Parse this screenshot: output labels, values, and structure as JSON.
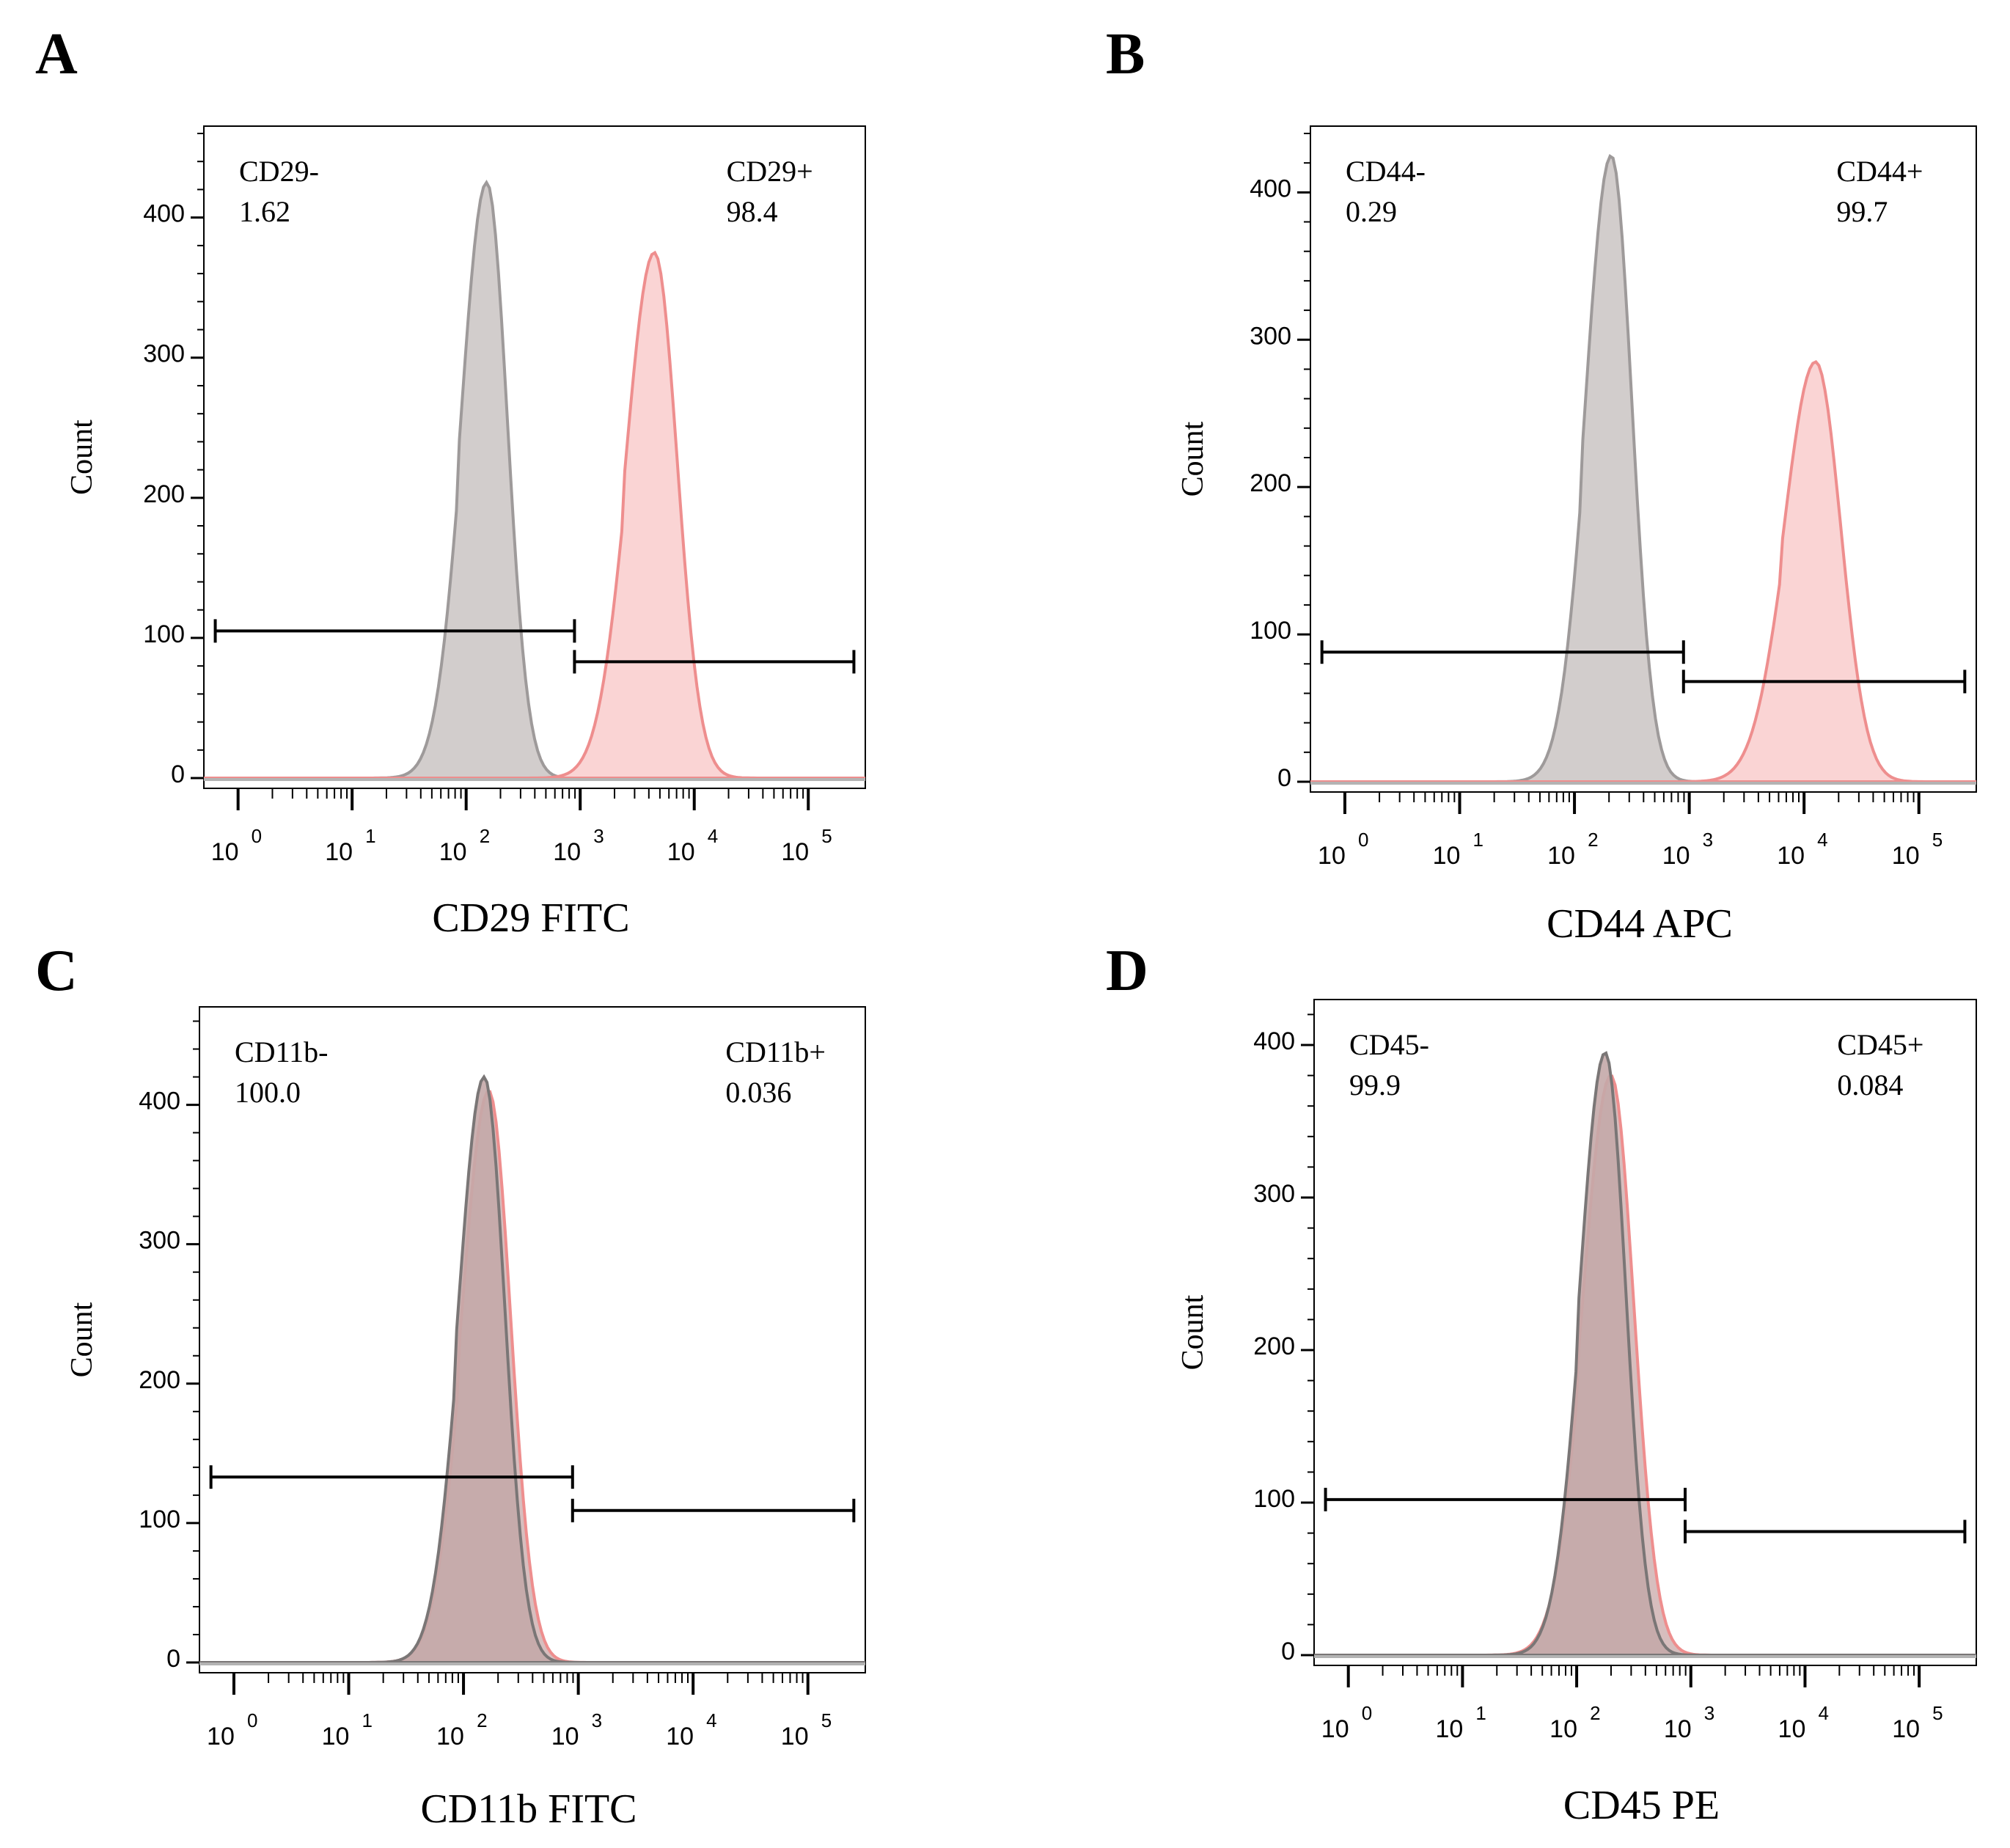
{
  "chart_data": [
    {
      "type": "histogram",
      "panel": "A",
      "xlabel": "CD29 FITC",
      "ylabel": "Count",
      "xscale": "log",
      "ylim": [
        0,
        460
      ],
      "yticks": [
        {
          "value": 0,
          "label": "0"
        },
        {
          "value": 100,
          "label": "100"
        },
        {
          "value": 200,
          "label": "200"
        },
        {
          "value": 300,
          "label": "300"
        },
        {
          "value": 400,
          "label": "400"
        }
      ],
      "xticks": [
        {
          "value": 0,
          "base": "10",
          "exp": "0"
        },
        {
          "value": 1,
          "base": "10",
          "exp": "1"
        },
        {
          "value": 2,
          "base": "10",
          "exp": "2"
        },
        {
          "value": 3,
          "base": "10",
          "exp": "3"
        },
        {
          "value": 4,
          "base": "10",
          "exp": "4"
        },
        {
          "value": 5,
          "base": "10",
          "exp": "5"
        }
      ],
      "series": [
        {
          "color": "#9e9a9a",
          "fill": "#cdc8c7",
          "peak_log10": 2.18,
          "peak_count": 425,
          "width": 0.18
        },
        {
          "color": "#ee8e8e",
          "fill": "#f9cfcf",
          "peak_log10": 3.65,
          "peak_count": 375,
          "width": 0.2
        }
      ],
      "gates": [
        {
          "label": "CD29-",
          "value": "1.62",
          "from_log10": -0.2,
          "to_log10": 2.95,
          "level": 105
        },
        {
          "label": "CD29+",
          "value": "98.4",
          "from_log10": 2.95,
          "to_log10": 5.4,
          "level": 83
        }
      ]
    },
    {
      "type": "histogram",
      "panel": "B",
      "xlabel": "CD44 APC",
      "ylabel": "Count",
      "xscale": "log",
      "ylim": [
        0,
        440
      ],
      "yticks": [
        {
          "value": 0,
          "label": "0"
        },
        {
          "value": 100,
          "label": "100"
        },
        {
          "value": 200,
          "label": "200"
        },
        {
          "value": 300,
          "label": "300"
        },
        {
          "value": 400,
          "label": "400"
        }
      ],
      "xticks": [
        {
          "value": 0,
          "base": "10",
          "exp": "0"
        },
        {
          "value": 1,
          "base": "10",
          "exp": "1"
        },
        {
          "value": 2,
          "base": "10",
          "exp": "2"
        },
        {
          "value": 3,
          "base": "10",
          "exp": "3"
        },
        {
          "value": 4,
          "base": "10",
          "exp": "4"
        },
        {
          "value": 5,
          "base": "10",
          "exp": "5"
        }
      ],
      "series": [
        {
          "color": "#9e9a9a",
          "fill": "#cdc8c7",
          "peak_log10": 2.32,
          "peak_count": 425,
          "width": 0.18
        },
        {
          "color": "#ee8e8e",
          "fill": "#f9cfcf",
          "peak_log10": 4.1,
          "peak_count": 285,
          "width": 0.22
        }
      ],
      "gates": [
        {
          "label": "CD44-",
          "value": "0.29",
          "from_log10": -0.2,
          "to_log10": 2.95,
          "level": 88
        },
        {
          "label": "CD44+",
          "value": "99.7",
          "from_log10": 2.95,
          "to_log10": 5.4,
          "level": 68
        }
      ]
    },
    {
      "type": "histogram",
      "panel": "C",
      "xlabel": "CD11b FITC",
      "ylabel": "Count",
      "xscale": "log",
      "ylim": [
        0,
        465
      ],
      "yticks": [
        {
          "value": 0,
          "label": "0"
        },
        {
          "value": 100,
          "label": "100"
        },
        {
          "value": 200,
          "label": "200"
        },
        {
          "value": 300,
          "label": "300"
        },
        {
          "value": 400,
          "label": "400"
        }
      ],
      "xticks": [
        {
          "value": 0,
          "base": "10",
          "exp": "0"
        },
        {
          "value": 1,
          "base": "10",
          "exp": "1"
        },
        {
          "value": 2,
          "base": "10",
          "exp": "2"
        },
        {
          "value": 3,
          "base": "10",
          "exp": "3"
        },
        {
          "value": 4,
          "base": "10",
          "exp": "4"
        },
        {
          "value": 5,
          "base": "10",
          "exp": "5"
        }
      ],
      "series": [
        {
          "color": "#ee8e8e",
          "fill": "#c9a8a8",
          "peak_log10": 2.22,
          "peak_count": 410,
          "width": 0.19
        },
        {
          "color": "#7a7676",
          "fill": "#c4a9a9",
          "peak_log10": 2.18,
          "peak_count": 420,
          "width": 0.18
        }
      ],
      "gates": [
        {
          "label": "CD11b-",
          "value": "100.0",
          "from_log10": -0.2,
          "to_log10": 2.95,
          "level": 133
        },
        {
          "label": "CD11b+",
          "value": "0.036",
          "from_log10": 2.95,
          "to_log10": 5.4,
          "level": 109
        }
      ]
    },
    {
      "type": "histogram",
      "panel": "D",
      "xlabel": "CD45 PE",
      "ylabel": "Count",
      "xscale": "log",
      "ylim": [
        0,
        425
      ],
      "yticks": [
        {
          "value": 0,
          "label": "0"
        },
        {
          "value": 100,
          "label": "100"
        },
        {
          "value": 200,
          "label": "200"
        },
        {
          "value": 300,
          "label": "300"
        },
        {
          "value": 400,
          "label": "400"
        }
      ],
      "xticks": [
        {
          "value": 0,
          "base": "10",
          "exp": "0"
        },
        {
          "value": 1,
          "base": "10",
          "exp": "1"
        },
        {
          "value": 2,
          "base": "10",
          "exp": "2"
        },
        {
          "value": 3,
          "base": "10",
          "exp": "3"
        },
        {
          "value": 4,
          "base": "10",
          "exp": "4"
        },
        {
          "value": 5,
          "base": "10",
          "exp": "5"
        }
      ],
      "series": [
        {
          "color": "#ee8e8e",
          "fill": "#c9a8a8",
          "peak_log10": 2.3,
          "peak_count": 380,
          "width": 0.2
        },
        {
          "color": "#7a7676",
          "fill": "#c4a9a9",
          "peak_log10": 2.25,
          "peak_count": 395,
          "width": 0.18
        }
      ],
      "gates": [
        {
          "label": "CD45-",
          "value": "99.9",
          "from_log10": -0.2,
          "to_log10": 2.95,
          "level": 102
        },
        {
          "label": "CD45+",
          "value": "0.084",
          "from_log10": 2.95,
          "to_log10": 5.4,
          "level": 81
        }
      ]
    }
  ]
}
